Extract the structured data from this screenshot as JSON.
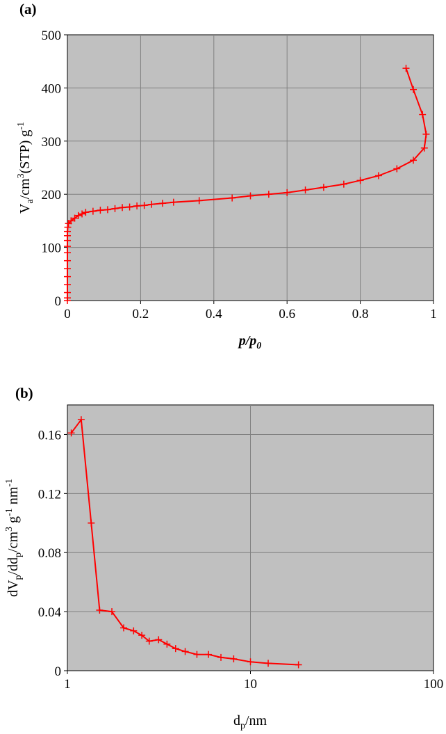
{
  "chart_data": [
    {
      "panel_label": "(a)",
      "type": "line",
      "xlabel": {
        "main": "p/p",
        "sub": "0"
      },
      "ylabel": {
        "p1": "V",
        "sub": "a",
        "p2": "/cm",
        "sup": "3",
        "p3": "(STP) g",
        "sup2": "-1"
      },
      "xlim": [
        0,
        1
      ],
      "ylim": [
        0,
        500
      ],
      "xticks": [
        0,
        0.2,
        0.4,
        0.6,
        0.8,
        1
      ],
      "xtick_labels": [
        "0",
        "0.2",
        "0.4",
        "0.6",
        "0.8",
        "1"
      ],
      "yticks": [
        0,
        100,
        200,
        300,
        400,
        500
      ],
      "ytick_labels": [
        "0",
        "100",
        "200",
        "300",
        "400",
        "500"
      ],
      "grid": true,
      "series": [
        {
          "color": "#ff0000",
          "marker": "plus",
          "x": [
            0.0,
            0.0,
            0.0,
            0.0,
            0.0,
            0.0,
            0.0,
            0.0,
            0.0,
            0.0,
            0.0,
            0.0,
            0.001,
            0.003,
            0.01,
            0.02,
            0.03,
            0.04,
            0.05,
            0.07,
            0.09,
            0.11,
            0.13,
            0.15,
            0.17,
            0.19,
            0.21,
            0.23,
            0.26,
            0.29,
            0.36,
            0.45,
            0.5,
            0.55,
            0.6,
            0.65,
            0.7,
            0.755,
            0.8,
            0.85,
            0.9,
            0.945,
            0.975,
            0.98,
            0.97,
            0.945,
            0.925
          ],
          "y": [
            0,
            5,
            15,
            30,
            45,
            60,
            75,
            90,
            102,
            113,
            122,
            130,
            138,
            145,
            150,
            155,
            160,
            163,
            166,
            168,
            170,
            171,
            173,
            175,
            176,
            178,
            179,
            181,
            183,
            185,
            188,
            193,
            197,
            200,
            203,
            208,
            213,
            219,
            226,
            235,
            248,
            264,
            287,
            313,
            350,
            397,
            437
          ]
        }
      ]
    },
    {
      "panel_label": "(b)",
      "type": "line",
      "xlabel": {
        "main": "d",
        "sub": "p",
        "rest": "/nm"
      },
      "ylabel": {
        "p1": "dV",
        "sub": "p",
        "p2": "/dd",
        "sub2": "p",
        "p3": "/cm",
        "sup": "3",
        "p4": " g",
        "sup2": "-1",
        "p5": " nm",
        "sup3": "-1"
      },
      "xscale": "log",
      "xlim": [
        1,
        100
      ],
      "ylim": [
        0,
        0.18
      ],
      "xticks": [
        1,
        10,
        100
      ],
      "xtick_labels": [
        "1",
        "10",
        "100"
      ],
      "yticks": [
        0,
        0.04,
        0.08,
        0.12,
        0.16
      ],
      "ytick_labels": [
        "0",
        "0.04",
        "0.08",
        "0.12",
        "0.16"
      ],
      "grid": true,
      "series": [
        {
          "color": "#ff0000",
          "marker": "plus",
          "x": [
            1.05,
            1.19,
            1.35,
            1.5,
            1.75,
            2.03,
            2.3,
            2.55,
            2.8,
            3.15,
            3.5,
            3.9,
            4.4,
            5.1,
            5.9,
            6.9,
            8.1,
            10.0,
            12.5,
            18.3
          ],
          "y": [
            0.161,
            0.17,
            0.1,
            0.041,
            0.04,
            0.029,
            0.027,
            0.024,
            0.02,
            0.021,
            0.018,
            0.015,
            0.013,
            0.011,
            0.011,
            0.009,
            0.008,
            0.006,
            0.005,
            0.004
          ]
        }
      ]
    }
  ]
}
